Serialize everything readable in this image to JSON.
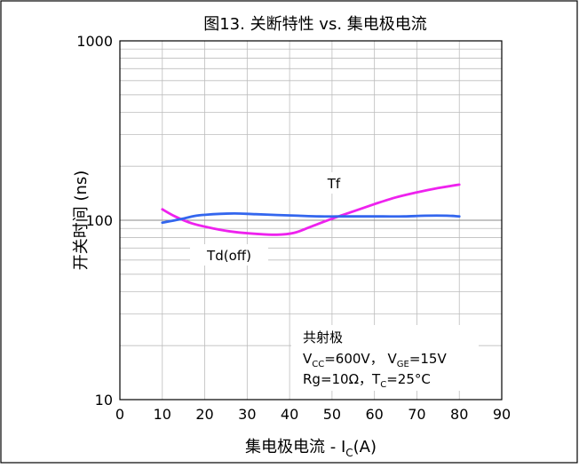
{
  "chart_data": {
    "type": "line",
    "title": "图13. 关断特性 vs. 集电极电流",
    "xlabel": {
      "main": "集电极电流 - I",
      "sub": "C",
      "suffix": "(A)"
    },
    "ylabel": "开关时间 (ns)",
    "xlim": [
      0,
      90
    ],
    "ylim": [
      10,
      1000
    ],
    "yscale": "log",
    "grid": true,
    "x_ticks": [
      "0",
      "10",
      "20",
      "30",
      "40",
      "50",
      "60",
      "70",
      "80",
      "90"
    ],
    "y_ticks": [
      "10",
      "100",
      "1000"
    ],
    "series": [
      {
        "name": "Tf",
        "color": "#ee22ee",
        "points": [
          [
            10,
            115
          ],
          [
            13,
            105
          ],
          [
            17,
            96
          ],
          [
            22,
            90
          ],
          [
            27,
            86
          ],
          [
            32,
            84
          ],
          [
            37,
            83
          ],
          [
            41,
            85
          ],
          [
            45,
            92
          ],
          [
            50,
            102
          ],
          [
            55,
            112
          ],
          [
            60,
            123
          ],
          [
            65,
            134
          ],
          [
            70,
            143
          ],
          [
            75,
            151
          ],
          [
            80,
            158
          ]
        ]
      },
      {
        "name": "Td(off)",
        "color": "#3366ee",
        "points": [
          [
            10,
            97
          ],
          [
            14,
            101
          ],
          [
            18,
            106
          ],
          [
            22,
            108
          ],
          [
            27,
            109
          ],
          [
            32,
            108
          ],
          [
            37,
            107
          ],
          [
            42,
            106
          ],
          [
            47,
            105
          ],
          [
            52,
            105
          ],
          [
            57,
            105
          ],
          [
            62,
            105
          ],
          [
            67,
            105
          ],
          [
            72,
            106
          ],
          [
            77,
            106
          ],
          [
            80,
            105
          ]
        ]
      }
    ],
    "annotation": {
      "line1": "共射极",
      "line2": {
        "a": "V",
        "a_sub": "CC",
        "b": "=600V，  V",
        "b_sub": "GE",
        "c": "=15V"
      },
      "line3": {
        "a": "Rg=10Ω，T",
        "a_sub": "C",
        "b": "=25°C"
      }
    }
  }
}
